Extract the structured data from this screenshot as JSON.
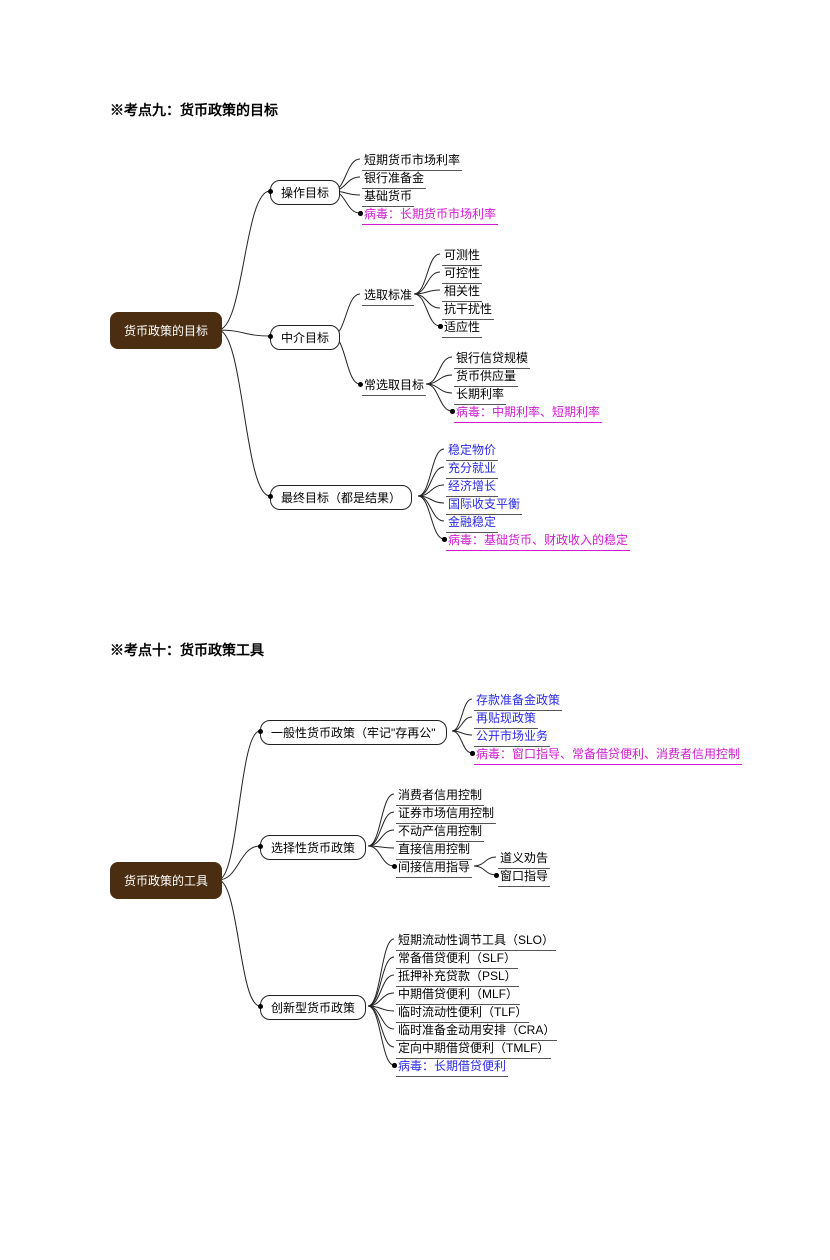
{
  "section1": {
    "title": "※考点九：货币政策的目标",
    "root": "货币政策的目标",
    "b1": {
      "label": "操作目标",
      "leaves": [
        "短期货币市场利率",
        "银行准备金",
        "基础货币",
        "病毒：长期货币市场利率"
      ],
      "colors": [
        "black",
        "black",
        "black",
        "magenta"
      ]
    },
    "b2": {
      "label": "中介目标",
      "sub1": {
        "label": "选取标准",
        "leaves": [
          "可测性",
          "可控性",
          "相关性",
          "抗干扰性",
          "适应性"
        ],
        "colors": [
          "black",
          "black",
          "black",
          "black",
          "black"
        ]
      },
      "sub2": {
        "label": "常选取目标",
        "leaves": [
          "银行信贷规模",
          "货币供应量",
          "长期利率",
          "病毒：中期利率、短期利率"
        ],
        "colors": [
          "black",
          "black",
          "black",
          "magenta"
        ]
      }
    },
    "b3": {
      "label": "最终目标（都是结果）",
      "leaves": [
        "稳定物价",
        "充分就业",
        "经济增长",
        "国际收支平衡",
        "金融稳定",
        "病毒：基础货币、财政收入的稳定"
      ],
      "colors": [
        "blue",
        "blue",
        "blue",
        "blue",
        "blue",
        "magenta"
      ]
    }
  },
  "section2": {
    "title": "※考点十：货币政策工具",
    "root": "货币政策的工具",
    "b1": {
      "label": "一般性货币政策（牢记\"存再公\"",
      "leaves": [
        "存款准备金政策",
        "再贴现政策",
        "公开市场业务",
        "病毒：窗口指导、常备借贷便利、消费者信用控制"
      ],
      "colors": [
        "blue",
        "blue",
        "blue",
        "magenta"
      ]
    },
    "b2": {
      "label": "选择性货币政策",
      "leaves": [
        "消费者信用控制",
        "证券市场信用控制",
        "不动产信用控制",
        "直接信用控制"
      ],
      "colors": [
        "black",
        "black",
        "black",
        "black"
      ],
      "sub": {
        "label": "间接信用指导",
        "leaves": [
          "道义劝告",
          "窗口指导"
        ],
        "colors": [
          "black",
          "black"
        ]
      }
    },
    "b3": {
      "label": "创新型货币政策",
      "leaves": [
        "短期流动性调节工具（SLO）",
        "常备借贷便利（SLF）",
        "抵押补充贷款（PSL）",
        "中期借贷便利（MLF）",
        "临时流动性便利（TLF）",
        "临时准备金动用安排（CRA）",
        "定向中期借贷便利（TMLF）",
        "病毒：长期借贷便利"
      ],
      "colors": [
        "black",
        "black",
        "black",
        "black",
        "black",
        "black",
        "black",
        "blue"
      ]
    }
  },
  "style": {
    "line_color": "#222",
    "line_width": 1,
    "root_bg": "#4b2e11"
  }
}
